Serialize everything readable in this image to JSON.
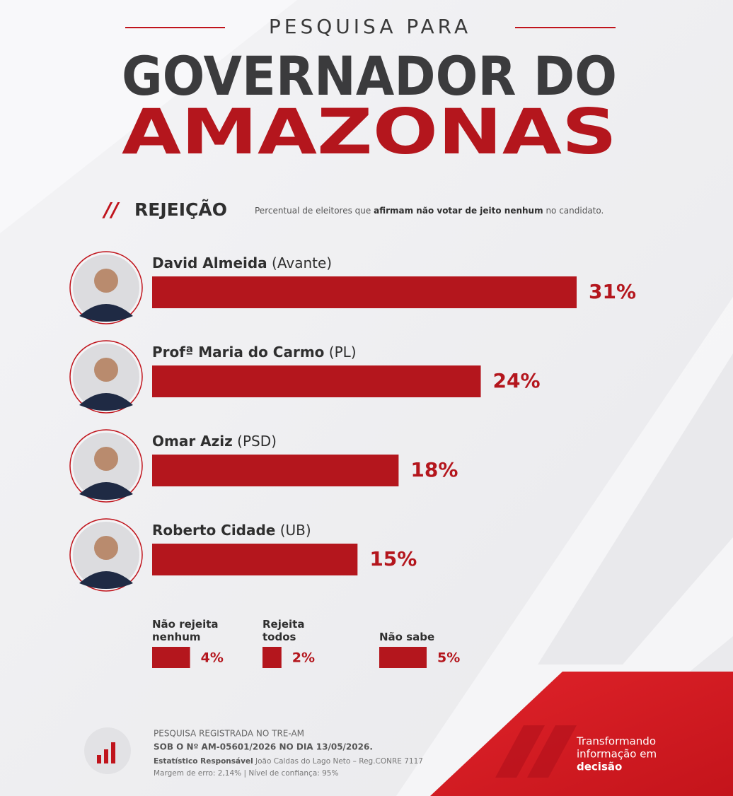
{
  "header": {
    "kicker": "PESQUISA PARA",
    "title_line1": "GOVERNADOR DO",
    "title_line2": "AMAZONAS"
  },
  "section": {
    "label": "REJEIÇÃO",
    "description_parts": [
      "Percentual de eleitores que",
      "afirmam não votar de jeito nenhum",
      "no candidato."
    ]
  },
  "chart_data": [
    {
      "type": "bar",
      "orientation": "horizontal",
      "color": "#b4161d",
      "categories": [
        "David Almeida",
        "Profª Maria do Carmo",
        "Omar Aziz",
        "Roberto Cidade"
      ],
      "parties": [
        "(Avante)",
        "(PL)",
        "(PSD)",
        "(UB)"
      ],
      "values": [
        31,
        24,
        18,
        15
      ],
      "value_labels": [
        "31%",
        "24%",
        "18%",
        "15%"
      ]
    },
    {
      "type": "bar",
      "orientation": "horizontal",
      "color": "#b4161d",
      "categories": [
        "Não rejeita nenhum",
        "Rejeita todos",
        "Não sabe"
      ],
      "values": [
        4,
        2,
        5
      ],
      "value_labels": [
        "4%",
        "2%",
        "5%"
      ]
    }
  ],
  "footer": {
    "line1": "PESQUISA REGISTRADA NO TRE-AM",
    "line2": "SOB O Nº AM-05601/2026 NO DIA 13/05/2026.",
    "line3_bold": "Estatístico Responsável",
    "line3_rest": "João Caldas do Lago Neto – Reg.CONRE 7117",
    "line4": "Margem de erro: 2,14% | Nível de confiança: 95%",
    "brand_line1": "Transformando",
    "brand_line2": "informação em",
    "brand_line3": "decisão"
  }
}
